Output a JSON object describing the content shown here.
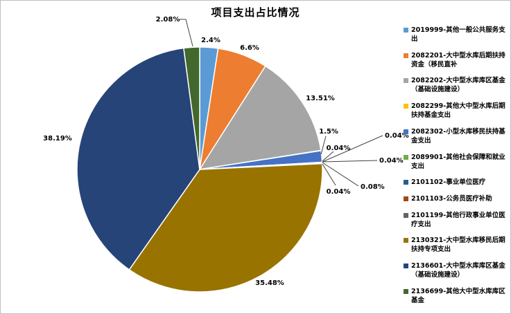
{
  "chart_data": {
    "type": "pie",
    "title": "项目支出占比情况",
    "legend_position": "right",
    "total_percent": 100.0,
    "slices": [
      {
        "code": "2019999",
        "name": "其他一般公共服务支出",
        "label": "2019999-其他一般公共服务支出",
        "value": 2.4,
        "pct": "2.4%",
        "color": "#5B9BD5"
      },
      {
        "code": "2082201",
        "name": "大中型水库后期扶持资金（移民直补",
        "label": "2082201-大中型水库后期扶持资金（移民直补",
        "value": 6.6,
        "pct": "6.6%",
        "color": "#ED7D31"
      },
      {
        "code": "2082202",
        "name": "大中型水库库区基金（基础设施建设）",
        "label": "2082202-大中型水库库区基金（基础设施建设）",
        "value": 13.51,
        "pct": "13.51%",
        "color": "#A5A5A5"
      },
      {
        "code": "2082299",
        "name": "其他大中型水库后期扶持基金支出",
        "label": "2082299-其他大中型水库后期扶持基金支出",
        "value": 0.04,
        "pct": "0.04%",
        "color": "#FFC000"
      },
      {
        "code": "2082302",
        "name": "小型水库移民扶持基金支出",
        "label": "2082302-小型水库移民扶持基金支出",
        "value": 1.5,
        "pct": "1.5%",
        "color": "#4472C4"
      },
      {
        "code": "2089901",
        "name": "其他社会保障和就业支出",
        "label": "2089901-其他社会保障和就业支出",
        "value": 0.04,
        "pct": "0.04%",
        "color": "#70AD47"
      },
      {
        "code": "2101102",
        "name": "事业单位医疗",
        "label": "2101102-事业单位医疗",
        "value": 0.04,
        "pct": "0.04%",
        "color": "#255E91"
      },
      {
        "code": "2101103",
        "name": "公务员医疗补助",
        "label": "2101103-公务员医疗补助",
        "value": 0.04,
        "pct": "0.04%",
        "color": "#9E480E"
      },
      {
        "code": "2101199",
        "name": "其他行政事业单位医疗支出",
        "label": "2101199-其他行政事业单位医疗支出",
        "value": 0.08,
        "pct": "0.08%",
        "color": "#636363"
      },
      {
        "code": "2130321",
        "name": "大中型水库移民后期扶持专项支出",
        "label": "2130321-大中型水库移民后期扶持专项支出",
        "value": 35.48,
        "pct": "35.48%",
        "color": "#997300"
      },
      {
        "code": "2136601",
        "name": "大中型水库库区基金（基础设施建设）",
        "label": "2136601-大中型水库库区基金（基础设施建设）",
        "value": 38.19,
        "pct": "38.19%",
        "color": "#264478"
      },
      {
        "code": "2136699",
        "name": "其他大中型水库库区基金",
        "label": "2136699-其他大中型水库库区基金",
        "value": 2.08,
        "pct": "2.08%",
        "color": "#43682B"
      }
    ]
  }
}
